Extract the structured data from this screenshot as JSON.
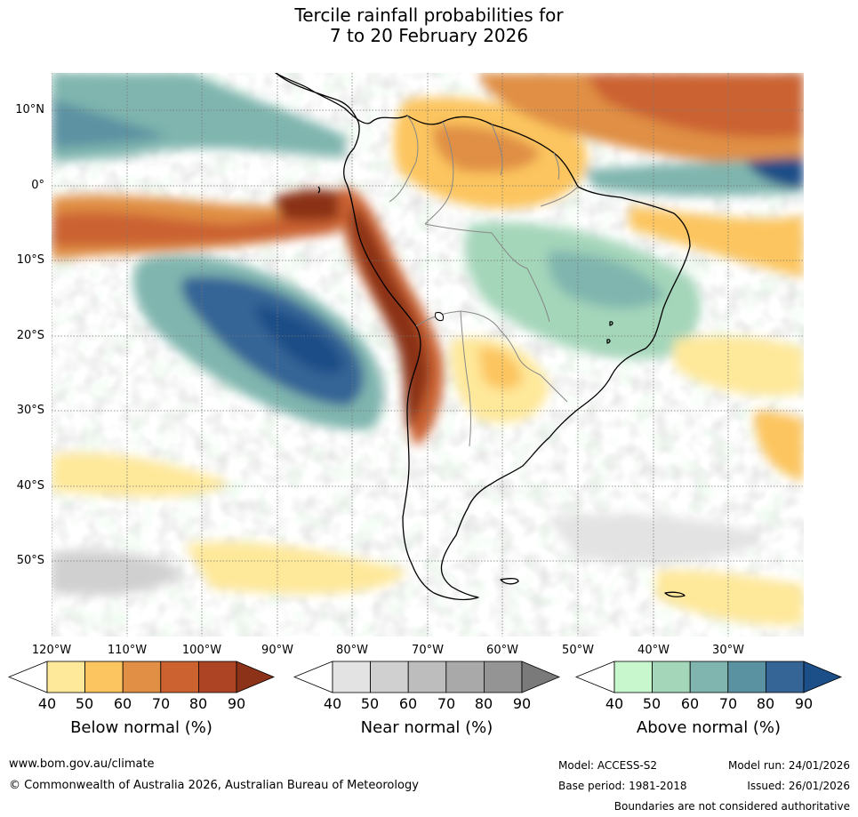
{
  "title": {
    "line1": "Tercile rainfall probabilities for",
    "line2": "7 to 20 February 2026"
  },
  "map": {
    "region": "South America",
    "lat_labels": [
      "10°N",
      "0°",
      "10°S",
      "20°S",
      "30°S",
      "40°S",
      "50°S"
    ],
    "lon_labels": [
      "120°W",
      "110°W",
      "100°W",
      "90°W",
      "80°W",
      "70°W",
      "60°W",
      "50°W",
      "40°W",
      "30°W"
    ],
    "colors": {
      "land_outline": "#000000",
      "borders": "#888888",
      "gridline": "#777777"
    }
  },
  "legends": {
    "below": {
      "title": "Below normal (%)",
      "ticks": [
        "40",
        "50",
        "60",
        "70",
        "80",
        "90"
      ],
      "colors": [
        "#ffffff",
        "#fee89a",
        "#fcc55f",
        "#e08f45",
        "#cb6230",
        "#ad4423",
        "#8b3218"
      ]
    },
    "near": {
      "title": "Near normal (%)",
      "ticks": [
        "40",
        "50",
        "60",
        "70",
        "80",
        "90"
      ],
      "colors": [
        "#ffffff",
        "#e3e3e3",
        "#d0d0d0",
        "#bdbdbd",
        "#a9a9a9",
        "#949494",
        "#7a7a7a"
      ]
    },
    "above": {
      "title": "Above normal (%)",
      "ticks": [
        "40",
        "50",
        "60",
        "70",
        "80",
        "90"
      ],
      "colors": [
        "#ffffff",
        "#c9f7cd",
        "#a4d6ba",
        "#7fb5ae",
        "#5b92a2",
        "#356596",
        "#1c4e87"
      ]
    }
  },
  "footer": {
    "website": "www.bom.gov.au/climate",
    "copyright": "© Commonwealth of Australia 2026, Australian Bureau of Meteorology",
    "model": "Model: ACCESS-S2",
    "base_period": "Base period: 1981-2018",
    "model_run": "Model run: 24/01/2026",
    "issued": "Issued: 26/01/2026",
    "disclaimer": "Boundaries are not considered authoritative"
  }
}
